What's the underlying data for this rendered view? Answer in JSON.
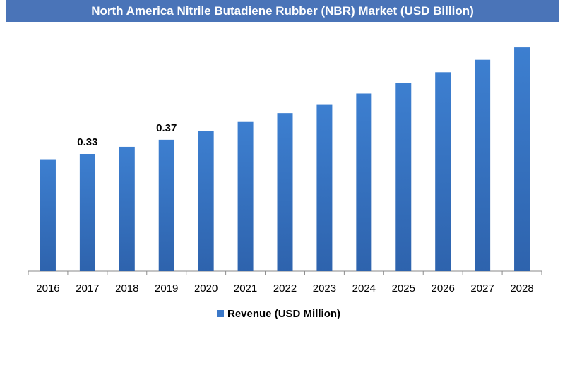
{
  "chart_data": {
    "type": "bar",
    "title": "North America Nitrile Butadiene Rubber (NBR) Market (USD Billion)",
    "categories": [
      "2016",
      "2017",
      "2018",
      "2019",
      "2020",
      "2021",
      "2022",
      "2023",
      "2024",
      "2025",
      "2026",
      "2027",
      "2028"
    ],
    "series": [
      {
        "name": "Revenue (USD Million)",
        "values": [
          0.315,
          0.33,
          0.35,
          0.37,
          0.395,
          0.42,
          0.445,
          0.47,
          0.5,
          0.53,
          0.56,
          0.595,
          0.63
        ],
        "data_labels": [
          "",
          "0.33",
          "",
          "0.37",
          "",
          "",
          "",
          "",
          "",
          "",
          "",
          "",
          ""
        ]
      }
    ],
    "ylim": [
      0,
      0.66
    ],
    "xlabel": "",
    "ylabel": "",
    "grid": false,
    "legend": "bottom-center",
    "colors": {
      "bar": "#3b78c8",
      "bar_dark": "#2f63ac",
      "title_bg": "#4a74b8",
      "axis": "#8a8a8a"
    }
  }
}
